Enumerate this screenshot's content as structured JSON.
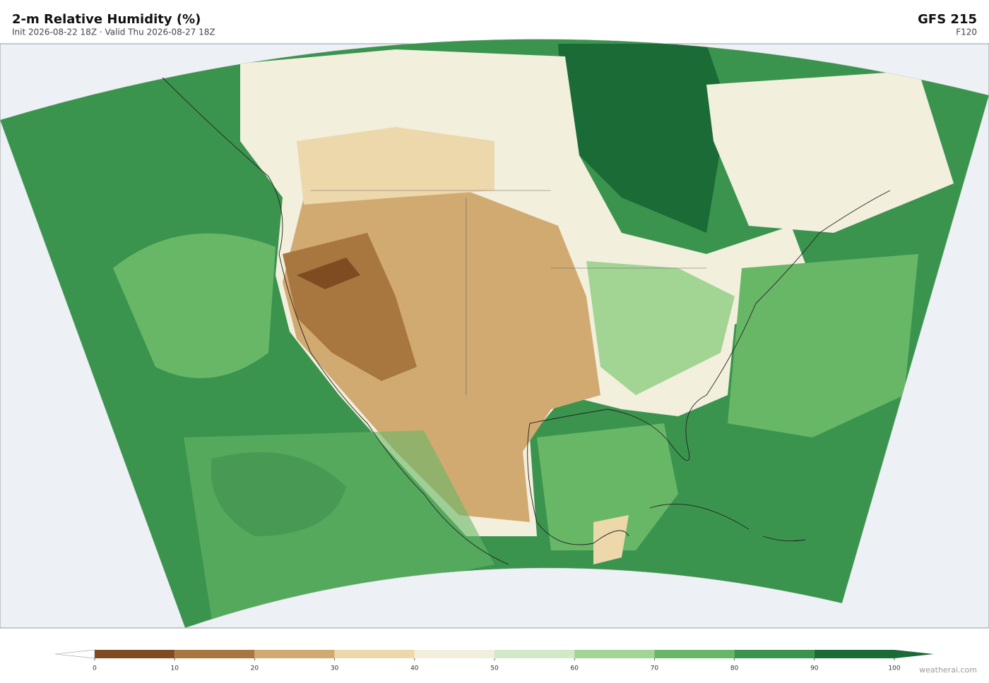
{
  "header": {
    "title": "2-m Relative Humidity  (%)",
    "subtitle": "Init 2026-08-22 18Z  ·  Valid Thu 2026-08-27 18Z",
    "model": "GFS  215",
    "forecast_hour": "F120"
  },
  "colorbar": {
    "ticks": [
      0,
      10,
      20,
      30,
      40,
      50,
      60,
      70,
      80,
      90,
      100
    ],
    "colors": [
      "#7f4c21",
      "#a8763f",
      "#d1aa71",
      "#ecd8aa",
      "#f2efdc",
      "#d2e9c7",
      "#a2d493",
      "#68b767",
      "#3a944e",
      "#1a6b36"
    ],
    "under_color": "#ffffff",
    "over_color": "#1a6b36"
  },
  "footer": {
    "watermark": "weatherai.com"
  }
}
